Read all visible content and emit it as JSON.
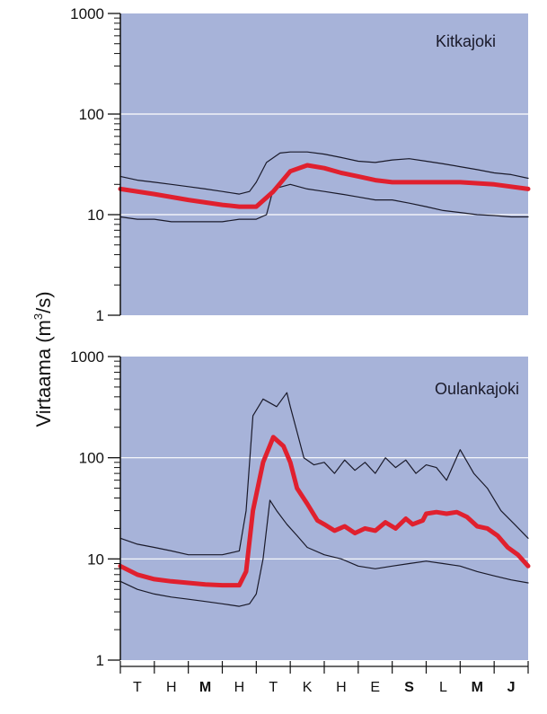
{
  "ylabel": "Virtaama (m",
  "ylabel_sup": "3",
  "ylabel_end": "/s)",
  "colors": {
    "panel_bg": "#a7b3d9",
    "mean_line": "#e0202e",
    "range_line": "#1a1a2a",
    "grid": "#ffffff",
    "axis": "#111111"
  },
  "x_ticks": [
    "T",
    "H",
    "M",
    "H",
    "T",
    "K",
    "H",
    "E",
    "S",
    "L",
    "M",
    "J"
  ],
  "chart_data": [
    {
      "type": "line",
      "title": "Kitkajoki",
      "ylabel": "Virtaama (m3/s)",
      "yscale": "log",
      "ylim": [
        1,
        1000
      ],
      "yticks": [
        "1",
        "10",
        "100",
        "1000"
      ],
      "grid": "horizontal at 10 and 100",
      "categories": [
        "T",
        "H",
        "M",
        "H",
        "T",
        "K",
        "H",
        "E",
        "S",
        "L",
        "M",
        "J"
      ],
      "series": [
        {
          "role": "max",
          "x": [
            0,
            0.5,
            1,
            1.5,
            2,
            2.5,
            3,
            3.5,
            3.8,
            4,
            4.3,
            4.7,
            5,
            5.5,
            6,
            6.5,
            7,
            7.5,
            8,
            8.5,
            9,
            9.5,
            10,
            10.5,
            11,
            11.5,
            12
          ],
          "y": [
            24,
            22,
            21,
            20,
            19,
            18,
            17,
            16,
            17,
            21,
            33,
            41,
            42,
            42,
            40,
            37,
            34,
            33,
            35,
            36,
            34,
            32,
            30,
            28,
            26,
            25,
            23
          ]
        },
        {
          "role": "mean",
          "x": [
            0,
            1,
            2,
            3,
            3.5,
            4,
            4.5,
            5,
            5.5,
            6,
            6.5,
            7,
            7.5,
            8,
            9,
            10,
            11,
            12
          ],
          "y": [
            18,
            16,
            14,
            12.5,
            12,
            12,
            17,
            27,
            31,
            29,
            26,
            24,
            22,
            21,
            21,
            21,
            20,
            18
          ]
        },
        {
          "role": "min",
          "x": [
            0,
            0.5,
            1,
            1.5,
            2,
            2.5,
            3,
            3.5,
            4,
            4.3,
            4.5,
            5,
            5.5,
            6,
            6.5,
            7,
            7.5,
            8,
            8.5,
            9,
            9.5,
            10,
            10.5,
            11,
            11.5,
            12
          ],
          "y": [
            9.5,
            9,
            9,
            8.5,
            8.5,
            8.5,
            8.5,
            9,
            9,
            10,
            18,
            20,
            18,
            17,
            16,
            15,
            14,
            14,
            13,
            12,
            11,
            10.5,
            10,
            9.8,
            9.5,
            9.5
          ]
        }
      ]
    },
    {
      "type": "line",
      "title": "Oulankajoki",
      "ylabel": "Virtaama (m3/s)",
      "yscale": "log",
      "ylim": [
        1,
        1000
      ],
      "yticks": [
        "1",
        "10",
        "100",
        "1000"
      ],
      "grid": "horizontal at 10 and 100",
      "categories": [
        "T",
        "H",
        "M",
        "H",
        "T",
        "K",
        "H",
        "E",
        "S",
        "L",
        "M",
        "J"
      ],
      "series": [
        {
          "role": "max",
          "x": [
            0,
            0.5,
            1,
            1.5,
            2,
            2.5,
            3,
            3.5,
            3.7,
            3.9,
            4.2,
            4.6,
            4.9,
            5,
            5.2,
            5.4,
            5.7,
            6,
            6.3,
            6.6,
            6.9,
            7.2,
            7.5,
            7.8,
            8.1,
            8.4,
            8.7,
            9,
            9.3,
            9.6,
            10,
            10.4,
            10.8,
            11.2,
            11.6,
            12
          ],
          "y": [
            16,
            14,
            13,
            12,
            11,
            11,
            11,
            12,
            30,
            260,
            380,
            320,
            440,
            320,
            180,
            100,
            85,
            90,
            70,
            95,
            75,
            90,
            70,
            100,
            80,
            95,
            70,
            85,
            80,
            60,
            120,
            70,
            50,
            30,
            22,
            16
          ]
        },
        {
          "role": "mean",
          "x": [
            0,
            0.5,
            1,
            1.5,
            2,
            2.5,
            3,
            3.5,
            3.7,
            3.9,
            4.2,
            4.5,
            4.8,
            5,
            5.2,
            5.5,
            5.8,
            6,
            6.3,
            6.6,
            6.9,
            7.2,
            7.5,
            7.8,
            8.1,
            8.4,
            8.6,
            8.9,
            9,
            9.3,
            9.6,
            9.9,
            10.2,
            10.5,
            10.8,
            11.1,
            11.4,
            11.7,
            12
          ],
          "y": [
            8.5,
            7,
            6.3,
            6,
            5.8,
            5.6,
            5.5,
            5.5,
            7.5,
            30,
            90,
            160,
            130,
            90,
            50,
            35,
            24,
            22,
            19,
            21,
            18,
            20,
            19,
            23,
            20,
            25,
            22,
            24,
            28,
            29,
            28,
            29,
            26,
            21,
            20,
            17,
            13,
            11,
            8.5
          ]
        },
        {
          "role": "min",
          "x": [
            0,
            0.5,
            1,
            1.5,
            2,
            2.5,
            3,
            3.5,
            3.8,
            4,
            4.2,
            4.4,
            4.6,
            4.9,
            5.2,
            5.5,
            6,
            6.5,
            7,
            7.5,
            8,
            8.5,
            9,
            9.5,
            10,
            10.5,
            11,
            11.5,
            12
          ],
          "y": [
            6,
            5,
            4.5,
            4.2,
            4,
            3.8,
            3.6,
            3.4,
            3.6,
            4.5,
            10,
            38,
            30,
            22,
            17,
            13,
            11,
            10,
            8.5,
            8,
            8.5,
            9,
            9.5,
            9,
            8.5,
            7.5,
            6.8,
            6.2,
            5.8
          ]
        }
      ]
    }
  ]
}
